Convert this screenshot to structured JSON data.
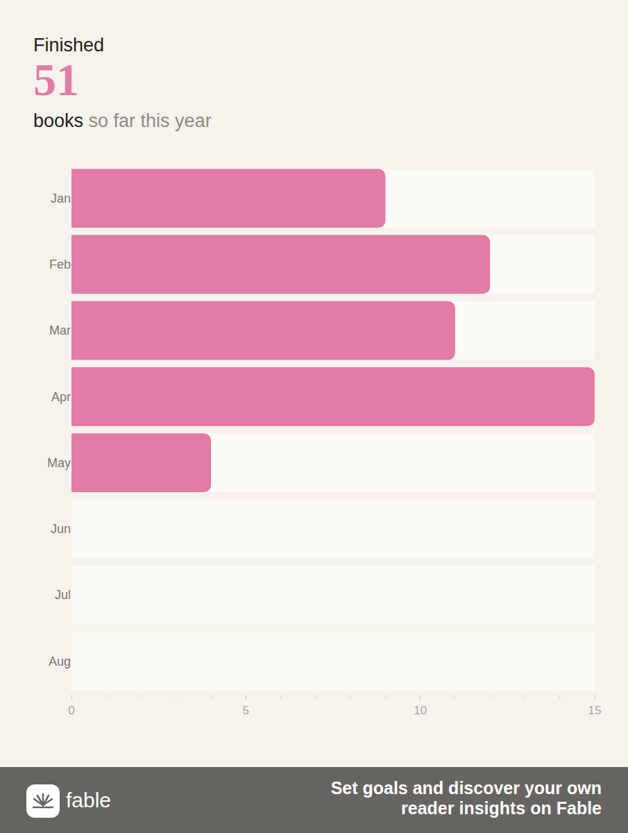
{
  "header": {
    "label": "Finished",
    "count": 51,
    "unit": "books",
    "suffix": "so far this year"
  },
  "footer": {
    "logo": "fable",
    "text": "Set goals and discover your own reader insights on Fable"
  },
  "chart_data": {
    "type": "bar",
    "orientation": "horizontal",
    "categories": [
      "Jan",
      "Feb",
      "Mar",
      "Apr",
      "May",
      "Jun",
      "Jul",
      "Aug"
    ],
    "values": [
      9,
      12,
      11,
      15,
      4,
      0,
      0,
      0
    ],
    "color": "#e27ba6",
    "xlim": [
      0,
      15
    ],
    "xticks": [
      0,
      5,
      10,
      15
    ],
    "grid": false
  }
}
